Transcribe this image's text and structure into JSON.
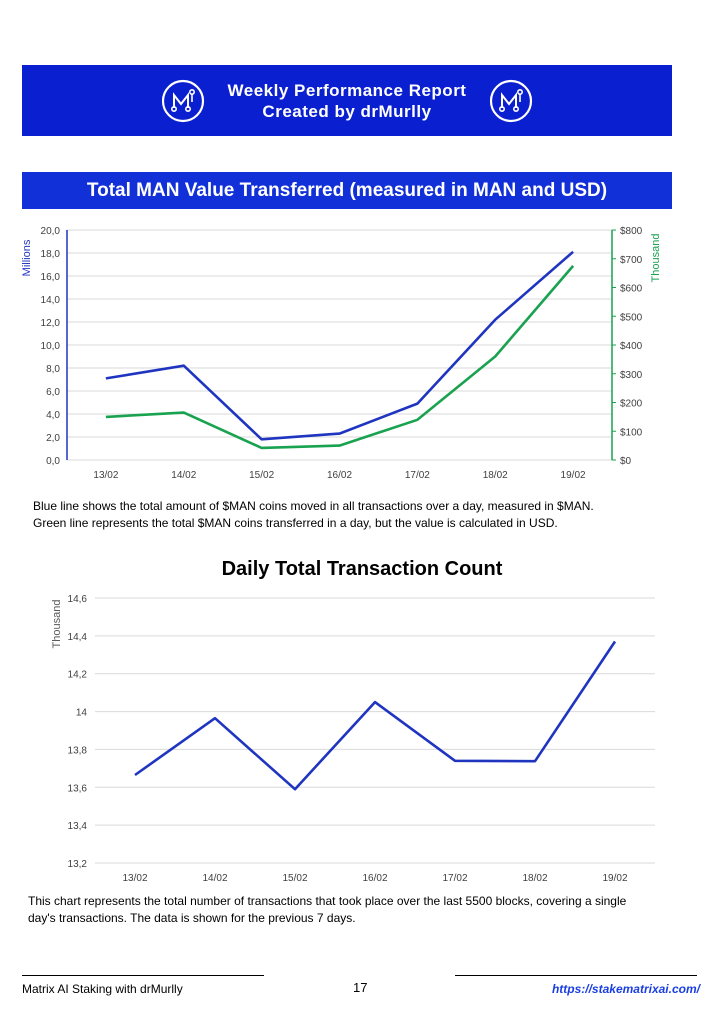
{
  "header": {
    "line1": "Weekly Performance Report",
    "line2": "Created by drMurlly",
    "logo_icon": "matrix-ai-logo-icon",
    "color": "#0a1fd0"
  },
  "chart1": {
    "heading": "Total MAN Value Transferred (measured in MAN and USD)",
    "caption_line1": "Blue line shows the total amount of $MAN coins moved in all transactions over a day, measured in $MAN.",
    "caption_line2": "Green line represents the total $MAN coins transferred in a day, but the value is calculated in USD."
  },
  "chart2": {
    "caption_line1": "This chart represents the total number of transactions that took place over the last 5500 blocks, covering a single",
    "caption_line2": "day's transactions. The data is shown for the previous 7 days."
  },
  "chart_data": [
    {
      "type": "line",
      "title": "",
      "categories": [
        "13/02",
        "14/02",
        "15/02",
        "16/02",
        "17/02",
        "18/02",
        "19/02"
      ],
      "ylabel": "Millions",
      "y2label": "Thousand",
      "ylim": [
        0,
        20
      ],
      "y2lim": [
        0,
        800
      ],
      "yticks": [
        "0,0",
        "2,0",
        "4,0",
        "6,0",
        "8,0",
        "10,0",
        "12,0",
        "14,0",
        "16,0",
        "18,0",
        "20,0"
      ],
      "y2ticks": [
        "$0",
        "$100",
        "$200",
        "$300",
        "$400",
        "$500",
        "$600",
        "$700",
        "$800"
      ],
      "grid": true,
      "series": [
        {
          "axis": "left",
          "color": "#1f35c0",
          "values": [
            7.1,
            8.2,
            1.8,
            2.3,
            4.9,
            12.2,
            18.1
          ]
        },
        {
          "axis": "right",
          "color": "#19a24f",
          "values": [
            150,
            165,
            42,
            50,
            140,
            360,
            675
          ]
        }
      ]
    },
    {
      "type": "line",
      "title": "Daily Total Transaction Count",
      "categories": [
        "13/02",
        "14/02",
        "15/02",
        "16/02",
        "17/02",
        "18/02",
        "19/02"
      ],
      "ylabel": "Thousand",
      "ylim": [
        13.2,
        14.6
      ],
      "yticks": [
        "13,2",
        "13,4",
        "13,6",
        "13,8",
        "14",
        "14,2",
        "14,4",
        "14,6"
      ],
      "grid": true,
      "series": [
        {
          "color": "#1f35c0",
          "values": [
            13.665,
            13.965,
            13.59,
            14.05,
            13.74,
            13.738,
            14.37
          ]
        }
      ]
    }
  ],
  "footer": {
    "left": "Matrix AI Staking with drMurlly",
    "page": "17",
    "link": "https://stakematrixai.com/"
  }
}
